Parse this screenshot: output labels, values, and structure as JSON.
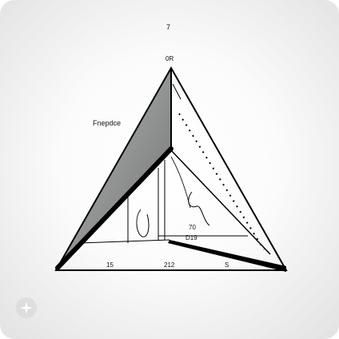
{
  "labels": {
    "top_number": "7",
    "apex_label": "0R",
    "left_label": "Fnepdce",
    "inner_upper": "70",
    "inner_lower": "D19",
    "bottom_left": "15",
    "bottom_mid": "212",
    "bottom_right": "S"
  },
  "colors": {
    "background": "#f4f4f4",
    "outline": "#000000",
    "left_face_shade": "#8f9190"
  },
  "icons": {
    "watermark": "sparkle-watermark-icon"
  }
}
